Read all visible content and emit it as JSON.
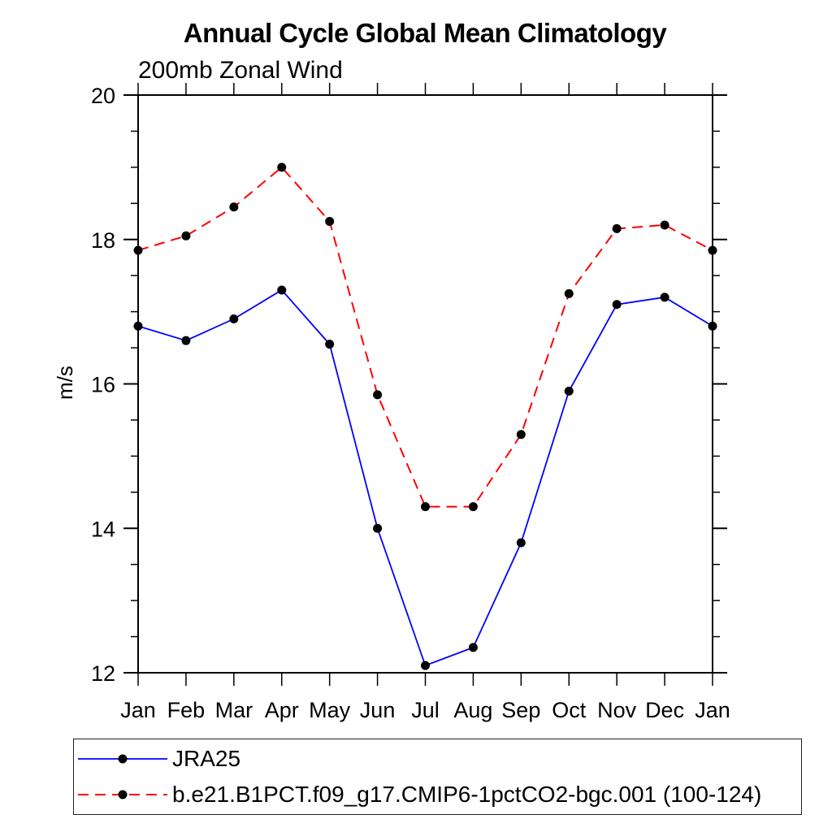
{
  "chart_data": {
    "type": "line",
    "title": "Annual Cycle Global Mean Climatology",
    "subtitle": "200mb Zonal Wind",
    "xlabel": "",
    "ylabel": "m/s",
    "x_categories": [
      "Jan",
      "Feb",
      "Mar",
      "Apr",
      "May",
      "Jun",
      "Jul",
      "Aug",
      "Sep",
      "Oct",
      "Nov",
      "Dec",
      "Jan"
    ],
    "ylim": [
      12,
      20
    ],
    "y_major_ticks": [
      12,
      14,
      16,
      18,
      20
    ],
    "y_minor_step": 0.5,
    "grid": false,
    "background_color": "#ffffff",
    "axis_color": "#000000",
    "marker_color": "#000000",
    "legend_position": "bottom-left",
    "series": [
      {
        "name": "JRA25",
        "color": "#0000ff",
        "line_style": "solid",
        "marker": "filled-circle",
        "values": [
          16.8,
          16.6,
          16.9,
          17.3,
          16.55,
          14.0,
          12.1,
          12.35,
          13.8,
          15.9,
          17.1,
          17.2,
          16.8
        ]
      },
      {
        "name": "b.e21.B1PCT.f09_g17.CMIP6-1pctCO2-bgc.001 (100-124)",
        "color": "#ff0000",
        "line_style": "dashed",
        "marker": "filled-circle",
        "values": [
          17.85,
          18.05,
          18.45,
          19.0,
          18.25,
          15.85,
          14.3,
          14.3,
          15.3,
          17.25,
          18.15,
          18.2,
          17.85
        ]
      }
    ]
  }
}
